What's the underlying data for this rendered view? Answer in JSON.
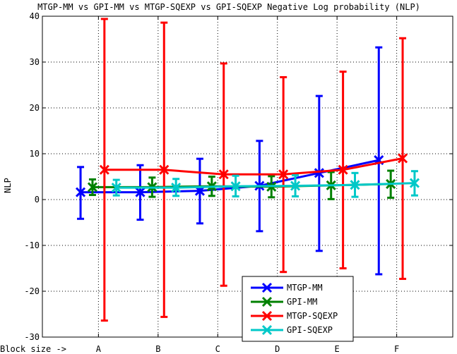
{
  "chart_data": {
    "type": "line",
    "title": "MTGP-MM vs GPI-MM vs MTGP-SQEXP vs GPI-SQEXP Negative Log probability (NLP)",
    "ylabel": "NLP",
    "xlabel": "Block size ->",
    "categories": [
      "A",
      "B",
      "C",
      "D",
      "E",
      "F"
    ],
    "ylim": [
      -30,
      40
    ],
    "yticks": [
      -30,
      -20,
      -10,
      0,
      10,
      20,
      30,
      40
    ],
    "grid": "dotted",
    "legend_position": "bottom-right",
    "series": [
      {
        "name": "MTGP-MM",
        "color": "#0000ff",
        "x_offset": -0.3,
        "values": [
          1.6,
          1.6,
          1.9,
          3.0,
          5.8,
          8.6
        ],
        "err_low": [
          -4.2,
          -4.4,
          -5.2,
          -6.9,
          -11.2,
          -16.3
        ],
        "err_high": [
          7.1,
          7.5,
          8.9,
          12.8,
          22.6,
          33.2
        ]
      },
      {
        "name": "GPI-MM",
        "color": "#008000",
        "x_offset": -0.1,
        "values": [
          2.7,
          2.7,
          2.9,
          2.8,
          3.1,
          3.4
        ],
        "err_low": [
          1.0,
          0.6,
          0.8,
          0.5,
          0.1,
          0.4
        ],
        "err_high": [
          4.4,
          4.8,
          5.0,
          5.1,
          6.0,
          6.3
        ]
      },
      {
        "name": "MTGP-SQEXP",
        "color": "#ff0000",
        "x_offset": 0.1,
        "values": [
          6.5,
          6.5,
          5.5,
          5.5,
          6.5,
          9.0
        ],
        "err_low": [
          -26.4,
          -25.6,
          -18.8,
          -15.8,
          -15.0,
          -17.3
        ],
        "err_high": [
          39.4,
          38.6,
          29.7,
          26.7,
          27.9,
          35.2
        ]
      },
      {
        "name": "GPI-SQEXP",
        "color": "#00c8c8",
        "x_offset": 0.3,
        "values": [
          2.6,
          2.6,
          2.9,
          3.0,
          3.2,
          3.6
        ],
        "err_low": [
          0.9,
          0.8,
          0.7,
          0.7,
          0.6,
          0.9
        ],
        "err_high": [
          4.3,
          4.5,
          5.2,
          5.3,
          5.8,
          6.2
        ]
      }
    ]
  }
}
